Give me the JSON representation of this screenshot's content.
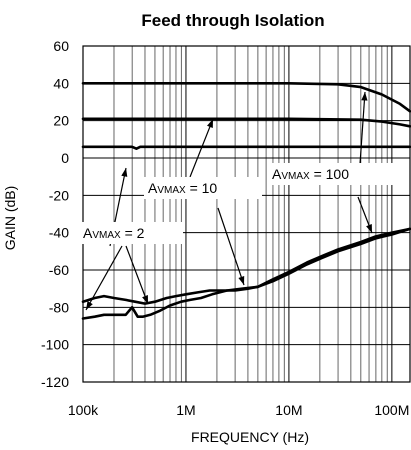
{
  "chart_data": {
    "type": "line",
    "title": "Feed through Isolation",
    "xlabel": "FREQUENCY (Hz)",
    "ylabel": "GAIN (dB)",
    "xscale": "log",
    "xlim": [
      100000,
      150000000
    ],
    "ylim": [
      -120,
      60
    ],
    "xticks": [
      {
        "value": 100000,
        "label": "100k"
      },
      {
        "value": 1000000,
        "label": "1M"
      },
      {
        "value": 10000000,
        "label": "10M"
      },
      {
        "value": 100000000,
        "label": "100M"
      }
    ],
    "yticks": [
      {
        "value": 60,
        "label": "60"
      },
      {
        "value": 40,
        "label": "40"
      },
      {
        "value": 20,
        "label": "20"
      },
      {
        "value": 0,
        "label": "0"
      },
      {
        "value": -20,
        "label": "-20"
      },
      {
        "value": -40,
        "label": "-40"
      },
      {
        "value": -60,
        "label": "-60"
      },
      {
        "value": -80,
        "label": "-80"
      },
      {
        "value": -100,
        "label": "-100"
      },
      {
        "value": -120,
        "label": "-120"
      }
    ],
    "grid": true,
    "series": [
      {
        "group": "gain",
        "x": [
          100000,
          1000000,
          10000000,
          30000000,
          50000000,
          80000000,
          120000000,
          150000000
        ],
        "y": [
          40,
          40,
          40,
          39.5,
          38,
          34,
          29,
          25
        ]
      },
      {
        "group": "gain",
        "x": [
          100000,
          1000000,
          10000000,
          50000000,
          80000000,
          120000000,
          150000000
        ],
        "y": [
          21,
          21,
          21,
          20.5,
          19.5,
          18,
          17
        ]
      },
      {
        "group": "gain",
        "x": [
          100000,
          300000,
          330000,
          360000,
          1000000,
          10000000,
          100000000,
          150000000
        ],
        "y": [
          6,
          6,
          5,
          6,
          6,
          6,
          6,
          6
        ]
      },
      {
        "group": "isolation",
        "x": [
          100000,
          130000,
          160000,
          200000,
          260000,
          320000,
          400000,
          500000,
          650000,
          800000,
          1000000,
          1300000,
          1700000,
          2200000,
          3000000,
          4000000,
          5000000,
          7000000,
          10000000,
          15000000,
          20000000,
          30000000,
          50000000,
          70000000,
          100000000,
          150000000
        ],
        "y": [
          -77,
          -75,
          -74,
          -75,
          -76,
          -77,
          -78,
          -77,
          -75,
          -74,
          -73,
          -72,
          -71,
          -71,
          -71,
          -70,
          -69,
          -66,
          -62,
          -57,
          -54,
          -50,
          -46,
          -43,
          -41,
          -38
        ]
      },
      {
        "group": "isolation",
        "x": [
          100000,
          130000,
          160000,
          200000,
          260000,
          300000,
          340000,
          380000,
          450000,
          550000,
          700000,
          900000,
          1100000,
          1400000,
          1800000,
          2500000,
          3500000,
          5000000,
          7000000,
          10000000,
          15000000,
          20000000,
          30000000,
          50000000,
          70000000,
          100000000,
          150000000
        ],
        "y": [
          -86,
          -85,
          -84,
          -84,
          -84,
          -80,
          -85,
          -85,
          -84,
          -82,
          -79,
          -77,
          -76,
          -75,
          -73,
          -71,
          -70,
          -69,
          -65,
          -61,
          -56,
          -53,
          -49,
          -45,
          -42,
          -40,
          -38
        ]
      }
    ],
    "annotations": [
      {
        "main": "A",
        "sub": "VMAX",
        "rest": " = 100"
      },
      {
        "main": "A",
        "sub": "VMAX",
        "rest": " = 10"
      },
      {
        "main": "A",
        "sub": "VMAX",
        "rest": " = 2"
      }
    ]
  }
}
